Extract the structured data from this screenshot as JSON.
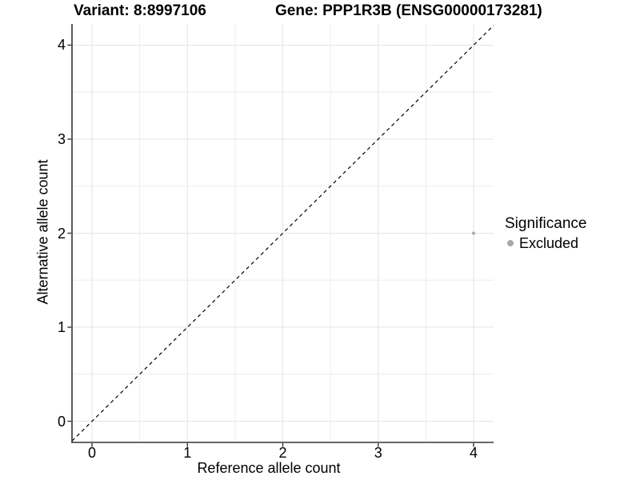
{
  "header": {
    "variant_title": "Variant: 8:8997106",
    "gene_title": "Gene: PPP1R3B (ENSG00000173281)"
  },
  "chart_data": {
    "type": "scatter",
    "xlabel": "Reference allele count",
    "ylabel": "Alternative allele count",
    "xlim": [
      -0.21,
      4.21
    ],
    "ylim": [
      -0.225,
      4.225
    ],
    "xticks": [
      0,
      1,
      2,
      3,
      4
    ],
    "yticks": [
      0,
      1,
      2,
      3,
      4
    ],
    "minor_ticks": [
      0.5,
      1.5,
      2.5,
      3.5
    ],
    "grid": "major and minor gridlines, white background",
    "reference_line": {
      "type": "identity y=x",
      "style": "dashed",
      "color": "#000000"
    },
    "points": [
      {
        "x": 4,
        "y": 2,
        "series": "Excluded"
      }
    ],
    "series": [
      {
        "name": "Excluded",
        "color": "#a9a9a9"
      }
    ],
    "legend": {
      "title": "Significance",
      "position": "right",
      "entries": [
        {
          "label": "Excluded",
          "marker": "circle",
          "color": "#a9a9a9"
        }
      ]
    }
  },
  "colors": {
    "background": "#ffffff",
    "grid_major": "#e4e4e4",
    "grid_minor": "#ededed",
    "axis_line": "#333333",
    "tick_mark": "#333333",
    "point": "#a9a9a9",
    "dashed_line": "#000000",
    "text": "#000000"
  }
}
